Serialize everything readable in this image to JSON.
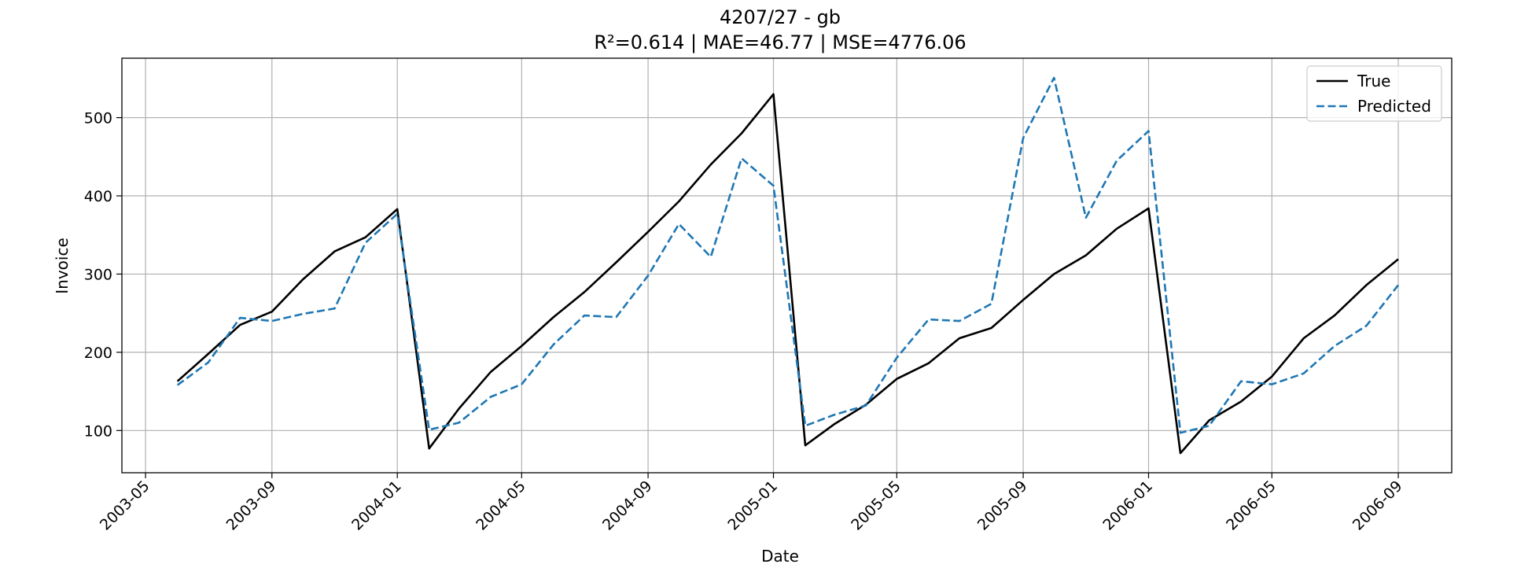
{
  "chart_data": {
    "type": "line",
    "title": "4207/27 - gb",
    "subtitle": "R²=0.614 | MAE=46.77 | MSE=4776.06",
    "xlabel": "Date",
    "ylabel": "Invoice",
    "xlim": [
      "2003-04-08",
      "2006-10-23"
    ],
    "ylim": [
      46,
      576
    ],
    "grid": true,
    "legend_position": "top-right",
    "x_ticks": [
      "2003-05",
      "2003-09",
      "2004-01",
      "2004-05",
      "2004-09",
      "2005-01",
      "2005-05",
      "2005-09",
      "2006-01",
      "2006-05",
      "2006-09"
    ],
    "y_ticks": [
      100,
      200,
      300,
      400,
      500
    ],
    "x": [
      "2003-06-01",
      "2003-07-01",
      "2003-08-01",
      "2003-09-01",
      "2003-10-01",
      "2003-11-01",
      "2003-12-01",
      "2004-01-01",
      "2004-02-01",
      "2004-03-01",
      "2004-04-01",
      "2004-05-01",
      "2004-06-01",
      "2004-07-01",
      "2004-08-01",
      "2004-09-01",
      "2004-10-01",
      "2004-11-01",
      "2004-12-01",
      "2005-01-01",
      "2005-02-01",
      "2005-03-01",
      "2005-04-01",
      "2005-05-01",
      "2005-06-01",
      "2005-07-01",
      "2005-08-01",
      "2005-09-01",
      "2005-10-01",
      "2005-11-01",
      "2005-12-01",
      "2006-01-01",
      "2006-02-01",
      "2006-03-01",
      "2006-04-01",
      "2006-05-01",
      "2006-06-01",
      "2006-07-01",
      "2006-08-01",
      "2006-09-01"
    ],
    "series": [
      {
        "name": "True",
        "color": "#000000",
        "dash": "solid",
        "values": [
          163,
          198,
          235,
          252,
          293,
          329,
          347,
          383,
          77,
          128,
          175,
          208,
          245,
          277,
          315,
          354,
          393,
          440,
          480,
          530,
          81,
          108,
          133,
          166,
          186,
          218,
          231,
          267,
          300,
          324,
          358,
          384,
          71,
          113,
          137,
          169,
          218,
          247,
          286,
          319
        ]
      },
      {
        "name": "Predicted",
        "color": "#1f77b4",
        "dash": "dashed",
        "values": [
          158,
          187,
          244,
          240,
          249,
          256,
          340,
          377,
          101,
          110,
          143,
          159,
          210,
          247,
          245,
          298,
          364,
          322,
          448,
          413,
          106,
          120,
          132,
          193,
          242,
          240,
          262,
          474,
          551,
          372,
          445,
          483,
          97,
          106,
          163,
          159,
          173,
          208,
          234,
          286
        ]
      }
    ]
  }
}
